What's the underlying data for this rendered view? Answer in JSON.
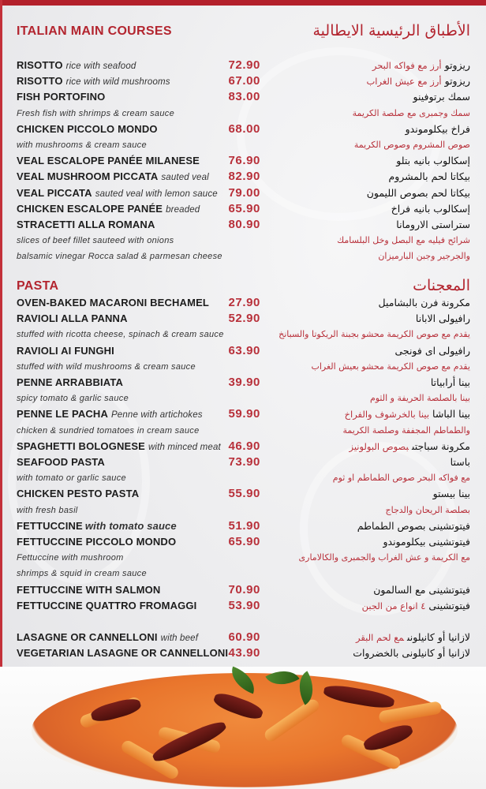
{
  "colors": {
    "accent": "#b3252f",
    "price": "#b8303a",
    "background": "#ececee"
  },
  "watermark_image": "faint decorative swirl pattern and website watermark",
  "main_courses": {
    "title_en": "ITALIAN MAIN COURSES",
    "title_ar": "الأطباق الرئيسية الايطالية",
    "rows": [
      {
        "en": "RISOTTO",
        "en_desc": "rice with seafood",
        "price": "72.90",
        "ar": "ريزوتو",
        "ar_desc": "أرز مع فواكه البحر"
      },
      {
        "en": "RISOTTO",
        "en_desc": "rice with wild mushrooms",
        "price": "67.00",
        "ar": "ريزوتو",
        "ar_desc": "أرز مع عيش الغراب"
      },
      {
        "en": "FISH PORTOFINO",
        "price": "83.00",
        "ar": "سمك برتوفينو"
      },
      {
        "desc": "Fresh fish with shrimps & cream sauce",
        "ar_line": "سمك وجمبرى مع صلصة الكريمة"
      },
      {
        "en": "CHICKEN PICCOLO MONDO",
        "price": "68.00",
        "ar": "فراخ بيكلوموندو"
      },
      {
        "desc": "with mushrooms & cream sauce",
        "ar_line": "صوص المشروم وصوص الكريمة"
      },
      {
        "en": "VEAL ESCALOPE PANÉE MILANESE",
        "price": "76.90",
        "ar": "إسكالوب بانيه بتلو"
      },
      {
        "en": "VEAL MUSHROOM PICCATA",
        "en_desc": "sauted veal",
        "price": "82.90",
        "ar": "بيكاتا لحم بالمشروم"
      },
      {
        "en": "VEAL PICCATA",
        "en_desc": "sauted veal with lemon sauce",
        "price": "79.00",
        "ar": "بيكاتا لحم بصوص الليمون"
      },
      {
        "en": "CHICKEN ESCALOPE PANÉE",
        "en_desc": "breaded",
        "price": "65.90",
        "ar": "إسكالوب بانيه فراخ"
      },
      {
        "en": "STRACETTI ALLA ROMANA",
        "price": "80.90",
        "ar": "ستراستى الارومانا"
      },
      {
        "desc": "slices of beef fillet sauteed with onions",
        "ar_line": "شرائح فيليه مع البصل وخل البلسامك"
      },
      {
        "desc": "balsamic vinegar Rocca salad & parmesan cheese",
        "ar_line": "والجرجير وجبن البارميزان"
      }
    ]
  },
  "pasta": {
    "title_en": "PASTA",
    "title_ar": "المعجنات",
    "rows": [
      {
        "en": "OVEN-BAKED MACARONI BECHAMEL",
        "price": "27.90",
        "ar": "مكرونة فرن بالبشاميل"
      },
      {
        "en": "RAVIOLI ALLA PANNA",
        "price": "52.90",
        "ar": "رافيولى الابانا"
      },
      {
        "desc": "stuffed with ricotta cheese, spinach & cream sauce",
        "ar_line": "يقدم مع صوص الكريمة محشو بجبنة الريكوتا والسبانخ"
      },
      {
        "en": "RAVIOLI AI FUNGHI",
        "price": "63.90",
        "ar": "رافيولى اى فونجى"
      },
      {
        "desc": "stuffed with wild mushrooms & cream sauce",
        "ar_line": "يقدم مع صوص الكريمة محشو بعيش الغراب"
      },
      {
        "en": "PENNE ARRABBIATA",
        "price": "39.90",
        "ar": "بينا أرابياتا"
      },
      {
        "desc": "spicy tomato & garlic sauce",
        "ar_line": "بينا بالصلصة الحريفة و الثوم"
      },
      {
        "en": "PENNE LE PACHA",
        "en_desc": "Penne with artichokes",
        "price": "59.90",
        "ar": "بينا الباشا",
        "ar_desc": "بينا بالخرشوف والفراخ"
      },
      {
        "desc": "chicken & sundried tomatoes in cream sauce",
        "ar_line": "والطماطم المجففة وصلصة الكريمة"
      },
      {
        "en": "SPAGHETTI BOLOGNESE",
        "en_desc": "with minced meat",
        "price": "46.90",
        "ar": "مكرونة سباجتى",
        "ar_desc": "بصوص البولونيز"
      },
      {
        "en": "SEAFOOD PASTA",
        "price": "73.90",
        "ar": "باستا"
      },
      {
        "desc": "with tomato or garlic sauce",
        "ar_line": "مع فواكه البحر  صوص الطماطم او ثوم"
      },
      {
        "en": "CHICKEN PESTO PASTA",
        "price": "55.90",
        "ar": "بينا بيستو"
      },
      {
        "desc": "with fresh basil",
        "ar_line": "بصلصة الريحان والدجاج"
      },
      {
        "en": "FETTUCCINE",
        "en_desc_strong": "with tomato sauce",
        "price": "51.90",
        "ar": "فيتوتشينى بصوص الطماطم"
      },
      {
        "en": "FETTUCCINE PICCOLO MONDO",
        "price": "65.90",
        "ar": "فيتوتشينى بيكلوموندو"
      },
      {
        "desc": "Fettuccine with mushroom",
        "ar_line": "مع الكريمة و عش الغراب والجمبرى والكالامارى"
      },
      {
        "desc": " shrimps & squid in cream sauce"
      },
      {
        "en": "FETTUCCINE WITH SALMON",
        "price": "70.90",
        "ar": "فيتوتشينى مع السالمون"
      },
      {
        "en": "FETTUCCINE QUATTRO FROMAGGI",
        "price": "53.90",
        "ar": "فيتوتشينى",
        "ar_desc": "٤ انواع من الجبن"
      },
      {},
      {
        "en": "LASAGNE OR CANNELLONI",
        "en_desc": "with beef",
        "price": "60.90",
        "ar": "لازانيا  أو كانيلونى",
        "ar_desc": "مع لحم البقر"
      },
      {
        "en": "VEGETARIAN LASAGNE OR CANNELLONI",
        "price": "43.90",
        "ar": "لازانيا أو كانيلونى بالخضروات"
      }
    ]
  }
}
